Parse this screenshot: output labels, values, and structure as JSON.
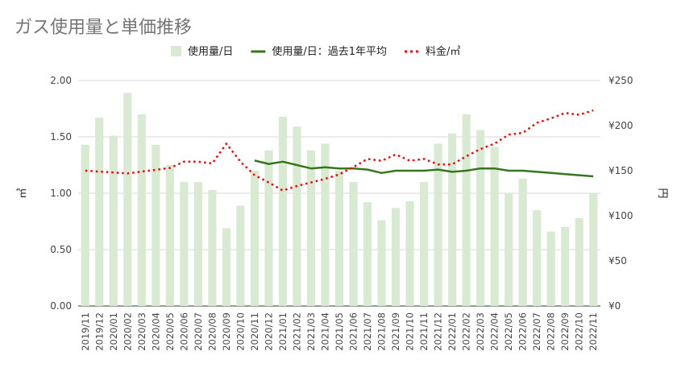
{
  "chart_data": {
    "type": "bar",
    "title": "ガス使用量と単価推移",
    "ylabel_left": "㎥",
    "ylabel_right": "円",
    "ylim_left": [
      0,
      2.0
    ],
    "ylim_right": [
      0,
      250
    ],
    "yticks_left": [
      "0.00",
      "0.50",
      "1.00",
      "1.50",
      "2.00"
    ],
    "yticks_right": [
      "¥0",
      "¥50",
      "¥100",
      "¥150",
      "¥200",
      "¥250"
    ],
    "grid": true,
    "legend_position": "top",
    "categories": [
      "2019/11",
      "2019/12",
      "2020/01",
      "2020/02",
      "2020/03",
      "2020/04",
      "2020/05",
      "2020/06",
      "2020/07",
      "2020/08",
      "2020/09",
      "2020/10",
      "2020/11",
      "2020/12",
      "2021/01",
      "2021/02",
      "2021/03",
      "2021/04",
      "2021/05",
      "2021/06",
      "2021/07",
      "2021/08",
      "2021/09",
      "2021/10",
      "2021/11",
      "2021/12",
      "2022/01",
      "2022/02",
      "2022/03",
      "2022/04",
      "2022/05",
      "2022/06",
      "2022/07",
      "2022/08",
      "2022/09",
      "2022/10",
      "2022/11"
    ],
    "series": [
      {
        "name": "使用量/日",
        "kind": "bar",
        "axis": "left",
        "color": "#d9ead3",
        "values": [
          1.43,
          1.67,
          1.51,
          1.89,
          1.7,
          1.43,
          1.25,
          1.1,
          1.1,
          1.03,
          0.69,
          0.89,
          1.2,
          1.38,
          1.68,
          1.59,
          1.38,
          1.44,
          1.2,
          1.1,
          0.92,
          0.76,
          0.87,
          0.93,
          1.1,
          1.44,
          1.53,
          1.7,
          1.56,
          1.41,
          1.0,
          1.13,
          0.85,
          0.66,
          0.7,
          0.78,
          1.0
        ]
      },
      {
        "name": "使用量/日：過去1年平均",
        "kind": "line",
        "axis": "left",
        "color": "#38761d",
        "values": [
          null,
          null,
          null,
          null,
          null,
          null,
          null,
          null,
          null,
          null,
          null,
          null,
          1.29,
          1.26,
          1.28,
          1.25,
          1.22,
          1.23,
          1.22,
          1.22,
          1.21,
          1.18,
          1.2,
          1.2,
          1.2,
          1.21,
          1.19,
          1.2,
          1.22,
          1.22,
          1.2,
          1.2,
          1.19,
          1.18,
          1.17,
          1.16,
          1.15
        ]
      },
      {
        "name": "料金/㎥",
        "kind": "dotted-line",
        "axis": "right",
        "color": "#ff0000",
        "values": [
          150,
          149,
          148,
          147,
          149,
          151,
          153,
          160,
          160,
          158,
          180,
          160,
          145,
          137,
          128,
          133,
          137,
          141,
          146,
          154,
          163,
          161,
          168,
          161,
          163,
          157,
          157,
          166,
          174,
          180,
          190,
          192,
          203,
          208,
          214,
          212,
          217
        ]
      }
    ]
  }
}
